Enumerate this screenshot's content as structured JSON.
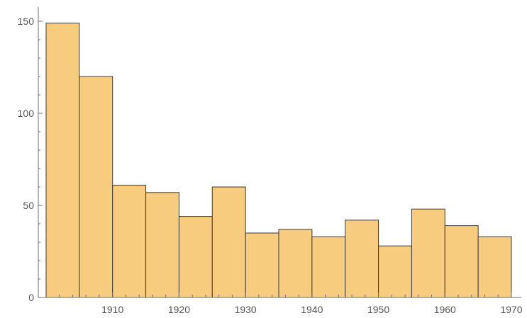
{
  "chart_data": {
    "type": "bar",
    "title": "",
    "xlabel": "",
    "ylabel": "",
    "bin_width": 5,
    "bins": [
      {
        "start": 1900,
        "end": 1905,
        "value": 149
      },
      {
        "start": 1905,
        "end": 1910,
        "value": 120
      },
      {
        "start": 1910,
        "end": 1915,
        "value": 61
      },
      {
        "start": 1915,
        "end": 1920,
        "value": 57
      },
      {
        "start": 1920,
        "end": 1925,
        "value": 44
      },
      {
        "start": 1925,
        "end": 1930,
        "value": 60
      },
      {
        "start": 1930,
        "end": 1935,
        "value": 35
      },
      {
        "start": 1935,
        "end": 1940,
        "value": 37
      },
      {
        "start": 1940,
        "end": 1945,
        "value": 33
      },
      {
        "start": 1945,
        "end": 1950,
        "value": 42
      },
      {
        "start": 1950,
        "end": 1955,
        "value": 28
      },
      {
        "start": 1955,
        "end": 1960,
        "value": 48
      },
      {
        "start": 1960,
        "end": 1965,
        "value": 39
      },
      {
        "start": 1965,
        "end": 1970,
        "value": 33
      }
    ],
    "xlim": [
      1900,
      1970
    ],
    "ylim": [
      0,
      150
    ],
    "x_ticks": [
      1910,
      1920,
      1930,
      1940,
      1950,
      1960,
      1970
    ],
    "y_ticks": [
      0,
      50,
      100,
      150
    ],
    "grid": false,
    "legend": "none",
    "colors": {
      "bar_fill": "#f8cc7e",
      "bar_stroke": "#3a3a3a",
      "axis": "#6e6e6e",
      "label": "#555555"
    }
  }
}
